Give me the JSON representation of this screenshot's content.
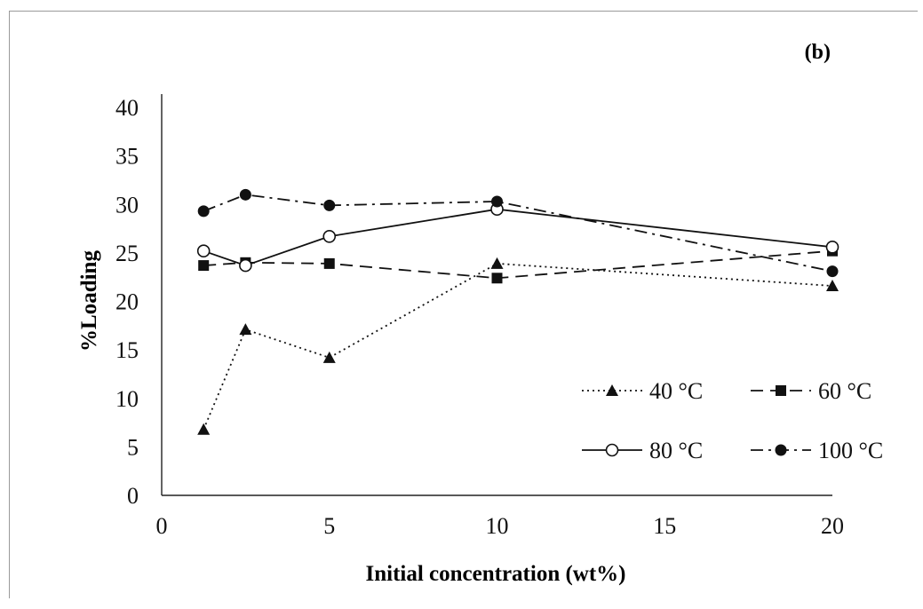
{
  "chart_data": {
    "type": "line",
    "panel_label": "(b)",
    "xlabel": "Initial concentration (wt%)",
    "ylabel": "%Loading",
    "xlim": [
      0,
      20
    ],
    "ylim": [
      0,
      40
    ],
    "x_ticks": [
      0,
      5,
      10,
      15,
      20
    ],
    "y_ticks": [
      0,
      5,
      10,
      15,
      20,
      25,
      30,
      35,
      40
    ],
    "grid": false,
    "legend_position": "bottom-right",
    "series": [
      {
        "name": "40 °C",
        "line_style": "dotted",
        "marker": "filled-triangle",
        "x": [
          1.25,
          2.5,
          5,
          10,
          20
        ],
        "y": [
          6.8,
          17.1,
          14.2,
          23.9,
          21.6
        ]
      },
      {
        "name": "60 °C",
        "line_style": "dashed",
        "marker": "filled-square",
        "x": [
          1.25,
          2.5,
          5,
          10,
          20
        ],
        "y": [
          23.7,
          24.0,
          23.9,
          22.4,
          25.2
        ]
      },
      {
        "name": "80 °C",
        "line_style": "solid",
        "marker": "open-circle",
        "x": [
          1.25,
          2.5,
          5,
          10,
          20
        ],
        "y": [
          25.2,
          23.7,
          26.7,
          29.5,
          25.6
        ]
      },
      {
        "name": "100 °C",
        "line_style": "dash-dot",
        "marker": "filled-circle",
        "x": [
          1.25,
          2.5,
          5,
          10,
          20
        ],
        "y": [
          29.3,
          31.0,
          29.9,
          30.3,
          23.1
        ]
      }
    ]
  }
}
